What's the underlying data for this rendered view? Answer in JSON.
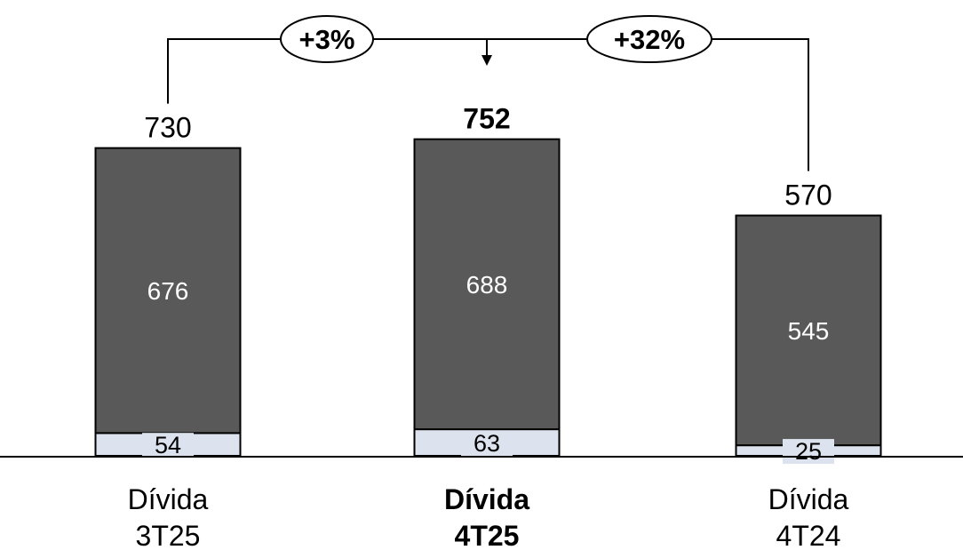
{
  "chart_data": {
    "type": "bar",
    "stacked": true,
    "categories": [
      {
        "line1": "Dívida",
        "line2": "3T25",
        "highlight": false
      },
      {
        "line1": "Dívida",
        "line2": "4T25",
        "highlight": true
      },
      {
        "line1": "Dívida",
        "line2": "4T24",
        "highlight": false
      }
    ],
    "series": [
      {
        "values": [
          54,
          63,
          25
        ],
        "color": "#dde3ee"
      },
      {
        "values": [
          676,
          688,
          545
        ],
        "color": "#595959"
      }
    ],
    "totals": [
      "730",
      "752",
      "570"
    ],
    "comparisons": [
      {
        "label": "+3%",
        "from": 0,
        "to": 1
      },
      {
        "label": "+32%",
        "from": 2,
        "to": 1
      }
    ],
    "ylim": [
      0,
      800
    ],
    "grid": false,
    "legend": "none"
  }
}
